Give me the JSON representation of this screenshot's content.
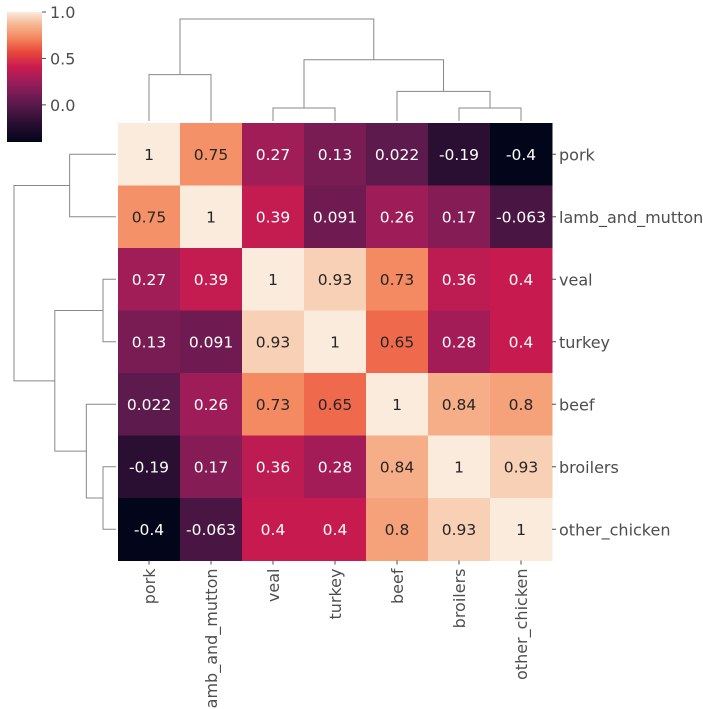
{
  "chart_data": {
    "type": "heatmap",
    "subtype": "clustermap",
    "variables": [
      "pork",
      "lamb_and_mutton",
      "veal",
      "turkey",
      "beef",
      "broilers",
      "other_chicken"
    ],
    "matrix": [
      [
        1,
        0.75,
        0.27,
        0.13,
        0.022,
        -0.19,
        -0.4
      ],
      [
        0.75,
        1,
        0.39,
        0.091,
        0.26,
        0.17,
        -0.063
      ],
      [
        0.27,
        0.39,
        1,
        0.93,
        0.73,
        0.36,
        0.4
      ],
      [
        0.13,
        0.091,
        0.93,
        1,
        0.65,
        0.28,
        0.4
      ],
      [
        0.022,
        0.26,
        0.73,
        0.65,
        1,
        0.84,
        0.8
      ],
      [
        -0.19,
        0.17,
        0.36,
        0.28,
        0.84,
        1,
        0.93
      ],
      [
        -0.4,
        -0.063,
        0.4,
        0.4,
        0.8,
        0.93,
        1
      ]
    ],
    "annotations": [
      [
        "1",
        "0.75",
        "0.27",
        "0.13",
        "0.022",
        "-0.19",
        "-0.4"
      ],
      [
        "0.75",
        "1",
        "0.39",
        "0.091",
        "0.26",
        "0.17",
        "-0.063"
      ],
      [
        "0.27",
        "0.39",
        "1",
        "0.93",
        "0.73",
        "0.36",
        "0.4"
      ],
      [
        "0.13",
        "0.091",
        "0.93",
        "1",
        "0.65",
        "0.28",
        "0.4"
      ],
      [
        "0.022",
        "0.26",
        "0.73",
        "0.65",
        "1",
        "0.84",
        "0.8"
      ],
      [
        "-0.19",
        "0.17",
        "0.36",
        "0.28",
        "0.84",
        "1",
        "0.93"
      ],
      [
        "-0.4",
        "-0.063",
        "0.4",
        "0.4",
        "0.8",
        "0.93",
        "1"
      ]
    ],
    "colorbar": {
      "vmin": -0.4,
      "vmax": 1.0,
      "ticks": [
        1.0,
        0.5,
        0.0
      ],
      "tick_labels": [
        "1.0",
        "0.5",
        "0.0"
      ],
      "colormap": "rocket"
    },
    "dendrogram_linkage": [
      [
        0,
        1,
        0.25
      ],
      [
        2,
        3,
        0.07
      ],
      [
        5,
        6,
        0.07
      ],
      [
        4,
        "5+6",
        0.16
      ],
      [
        "2+3",
        "4+5+6",
        0.33
      ],
      [
        "0+1",
        "2+3+4+5+6",
        0.55
      ]
    ]
  }
}
